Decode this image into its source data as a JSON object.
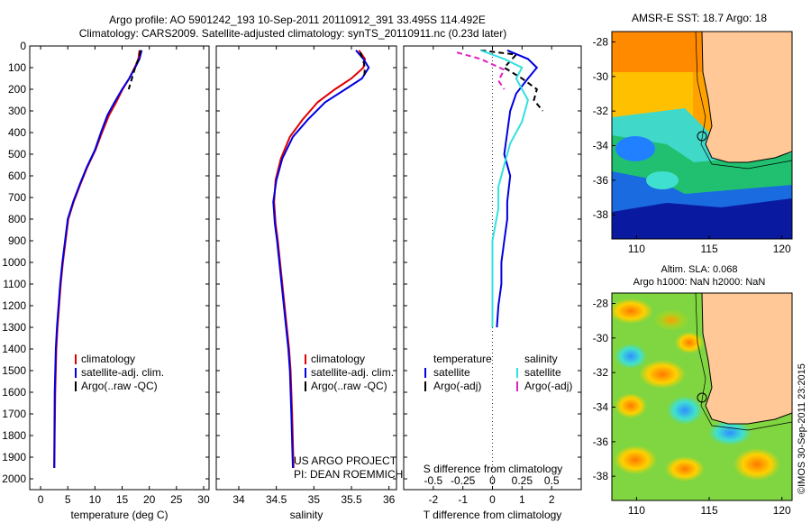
{
  "header": {
    "line1": "Argo profile: AO 5901242_193 10-Sep-2011 20110912_391 33.495S 114.492E",
    "line2": "Climatology: CARS2009. Satellite-adjusted climatology: synTS_20110911.nc (0.23d later)"
  },
  "credit": {
    "project": "US ARGO PROJECT",
    "pi": "PI: DEAN ROEMMICH",
    "imos": "©IMOS 30-Sep-2011 23:2015"
  },
  "colors": {
    "climatology": "#e00000",
    "satellite": "#0000e0",
    "argo": "#000000",
    "sal_satellite": "#33e0e0",
    "sal_argo": "#e020c0"
  },
  "chart_data": [
    {
      "id": "temperature",
      "type": "line",
      "xlabel": "temperature (deg C)",
      "ylabel": "",
      "xlim": [
        -2,
        31
      ],
      "ylim": [
        2050,
        0
      ],
      "xticks": [
        0,
        5,
        10,
        15,
        20,
        25,
        30
      ],
      "yticks": [
        0,
        100,
        200,
        300,
        400,
        500,
        600,
        700,
        800,
        900,
        1000,
        1100,
        1200,
        1300,
        1400,
        1500,
        1600,
        1700,
        1800,
        1900,
        2000
      ],
      "legend": [
        "climatology",
        "satellite-adj. clim.",
        "Argo(..raw -QC)"
      ],
      "series": [
        {
          "name": "climatology",
          "color": "#e00000",
          "x": [
            18.2,
            18.0,
            17.3,
            16.3,
            15.1,
            13.9,
            12.6,
            11.3,
            10.1,
            8.6,
            7.3,
            6.1,
            5.1,
            4.6,
            4.1,
            3.7,
            3.4,
            3.1,
            2.9,
            2.8,
            2.7,
            2.6,
            2.55
          ],
          "y": [
            20,
            60,
            100,
            150,
            200,
            260,
            320,
            400,
            480,
            560,
            640,
            720,
            800,
            900,
            1000,
            1100,
            1200,
            1300,
            1400,
            1500,
            1600,
            1800,
            1950
          ]
        },
        {
          "name": "satellite-adj. clim.",
          "color": "#0000e0",
          "x": [
            18.6,
            18.2,
            17.4,
            16.3,
            15.0,
            13.6,
            12.3,
            11.1,
            10.0,
            8.5,
            7.2,
            6.0,
            5.0,
            4.5,
            4.0,
            3.6,
            3.3,
            3.0,
            2.8,
            2.7,
            2.6,
            2.55,
            2.5
          ],
          "y": [
            20,
            60,
            100,
            150,
            200,
            260,
            320,
            400,
            480,
            560,
            640,
            720,
            800,
            900,
            1000,
            1100,
            1200,
            1300,
            1400,
            1500,
            1600,
            1800,
            1950
          ]
        },
        {
          "name": "Argo(..raw -QC)",
          "color": "#000000",
          "dash": true,
          "x": [
            18.4,
            18.0,
            17.4,
            16.8,
            16.2
          ],
          "y": [
            20,
            60,
            100,
            150,
            200
          ]
        }
      ]
    },
    {
      "id": "salinity",
      "type": "line",
      "xlabel": "salinity",
      "ylabel": "",
      "xlim": [
        33.7,
        36.1
      ],
      "ylim": [
        2050,
        0
      ],
      "xticks": [
        34,
        34.5,
        35,
        35.5,
        36
      ],
      "legend": [
        "climatology",
        "satellite-adj. clim.",
        "Argo(..raw -QC)"
      ],
      "series": [
        {
          "name": "climatology",
          "color": "#e00000",
          "x": [
            35.6,
            35.68,
            35.66,
            35.5,
            35.28,
            35.05,
            34.85,
            34.68,
            34.56,
            34.49,
            34.47,
            34.49,
            34.52,
            34.55,
            34.58,
            34.61,
            34.64,
            34.67,
            34.69,
            34.71,
            34.73
          ],
          "y": [
            20,
            60,
            100,
            150,
            200,
            260,
            340,
            420,
            520,
            620,
            720,
            820,
            900,
            1000,
            1100,
            1200,
            1300,
            1400,
            1500,
            1700,
            1950
          ]
        },
        {
          "name": "satellite-adj. clim.",
          "color": "#0000e0",
          "x": [
            35.56,
            35.66,
            35.73,
            35.64,
            35.42,
            35.15,
            34.92,
            34.72,
            34.58,
            34.5,
            34.46,
            34.48,
            34.51,
            34.54,
            34.57,
            34.6,
            34.63,
            34.66,
            34.68,
            34.7,
            34.72
          ],
          "y": [
            20,
            60,
            100,
            150,
            200,
            260,
            340,
            420,
            520,
            620,
            720,
            820,
            900,
            1000,
            1100,
            1200,
            1300,
            1400,
            1500,
            1700,
            1950
          ]
        },
        {
          "name": "Argo(..raw -QC)",
          "color": "#000000",
          "dash": true,
          "x": [
            35.62,
            35.66,
            35.68,
            35.67
          ],
          "y": [
            30,
            70,
            100,
            140
          ]
        }
      ]
    },
    {
      "id": "difference",
      "type": "line",
      "xlabel": "T difference from climatology",
      "x2label": "S difference from climatology",
      "xlim": [
        -3,
        3
      ],
      "ylim": [
        2050,
        0
      ],
      "xticks": [
        -2,
        -1,
        0,
        1,
        2
      ],
      "x2ticks": [
        -0.5,
        -0.25,
        0,
        0.25,
        0.5
      ],
      "legend_temperature_title": "temperature",
      "legend_salinity_title": "salinity",
      "legend": [
        "satellite",
        "Argo(-adj)",
        "satellite",
        "Argo(-adj)"
      ],
      "series": [
        {
          "name": "satellite",
          "group": "temperature",
          "color": "#0000e0",
          "x": [
            0.5,
            1.2,
            1.5,
            1.2,
            0.8,
            0.6,
            0.5,
            0.4,
            0.6,
            0.5,
            0.5,
            0.4,
            0.3,
            0.3,
            0.2,
            0.15
          ],
          "y": [
            20,
            60,
            100,
            150,
            220,
            300,
            400,
            500,
            600,
            720,
            800,
            900,
            1000,
            1100,
            1200,
            1300
          ]
        },
        {
          "name": "Argo(-adj)",
          "group": "temperature",
          "color": "#000000",
          "dash": true,
          "x": [
            -0.4,
            0.8,
            0.6,
            0.4,
            1.0,
            1.5,
            1.4,
            1.7
          ],
          "y": [
            20,
            40,
            70,
            100,
            150,
            200,
            250,
            300
          ]
        },
        {
          "name": "satellite",
          "group": "salinity",
          "color": "#33e0e0",
          "x": [
            -0.1,
            0.1,
            0.25,
            0.2,
            0.3,
            0.25,
            0.15,
            0.1,
            0.05,
            0.05,
            0.0,
            0.0,
            0.0,
            0.0
          ],
          "y": [
            20,
            60,
            100,
            150,
            250,
            350,
            450,
            550,
            650,
            750,
            900,
            1000,
            1150,
            1300
          ]
        },
        {
          "name": "Argo(-adj)",
          "group": "salinity",
          "color": "#e020c0",
          "dash": true,
          "x": [
            -0.3,
            -0.1,
            0.1,
            0.05,
            0.1
          ],
          "y": [
            30,
            60,
            110,
            160,
            200
          ]
        }
      ]
    }
  ],
  "maps": {
    "top": {
      "title": "AMSR-E SST: 18.7 Argo: 18",
      "xticks": [
        110,
        115,
        120
      ],
      "yticks": [
        -28,
        -30,
        -32,
        -34,
        -36,
        -38
      ]
    },
    "bottom": {
      "title1": "Altim. SLA: 0.068",
      "title2": "Argo h1000: NaN h2000: NaN",
      "xticks": [
        110,
        115,
        120
      ],
      "yticks": [
        -28,
        -30,
        -32,
        -34,
        -36,
        -38
      ]
    }
  }
}
